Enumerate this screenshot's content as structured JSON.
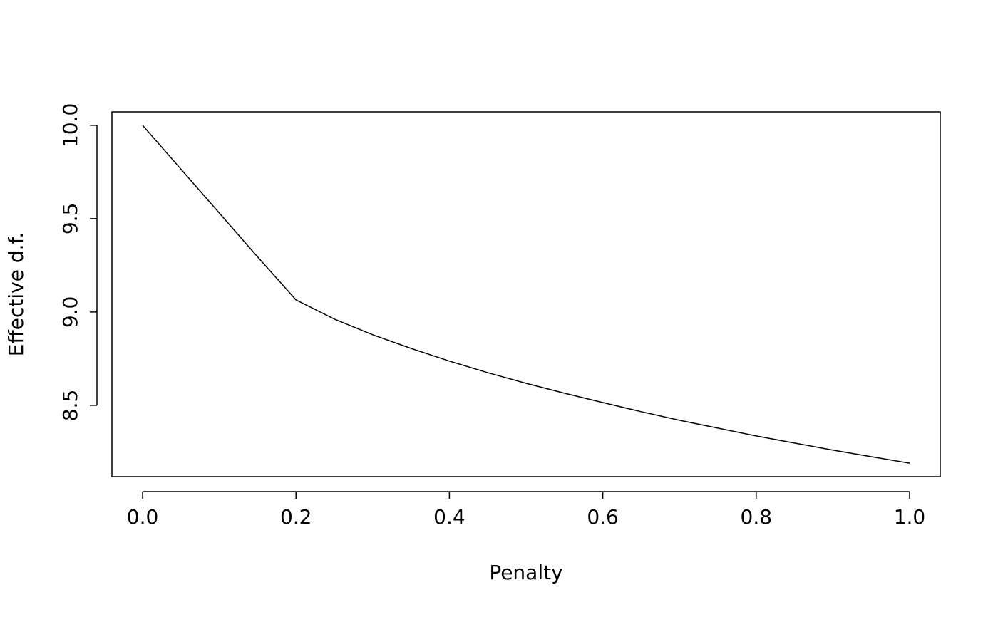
{
  "chart_data": {
    "type": "line",
    "x_label": "Penalty",
    "y_label": "Effective d.f.",
    "x": [
      0,
      0.05,
      0.1,
      0.15,
      0.2,
      0.25,
      0.3,
      0.35,
      0.4,
      0.45,
      0.5,
      0.55,
      0.6,
      0.65,
      0.7,
      0.75,
      0.8,
      0.85,
      0.9,
      0.95,
      1.0
    ],
    "series": [
      {
        "color": "#000000",
        "values": [
          10.0,
          9.765,
          9.53,
          9.295,
          9.065,
          8.962,
          8.878,
          8.805,
          8.737,
          8.675,
          8.618,
          8.565,
          8.515,
          8.466,
          8.42,
          8.378,
          8.336,
          8.298,
          8.26,
          8.225,
          8.19
        ]
      }
    ],
    "xlim": [
      -0.04,
      1.04
    ],
    "ylim": [
      8.118,
      10.072
    ],
    "xticks": [
      {
        "value": 0,
        "label": "0.0"
      },
      0.2,
      0.4,
      0.6,
      0.8,
      {
        "value": 1,
        "label": "1.0"
      }
    ],
    "yticks": [
      8.5,
      {
        "value": 9,
        "label": "9.0"
      },
      9.5,
      {
        "value": 10,
        "label": "10.0"
      }
    ]
  }
}
